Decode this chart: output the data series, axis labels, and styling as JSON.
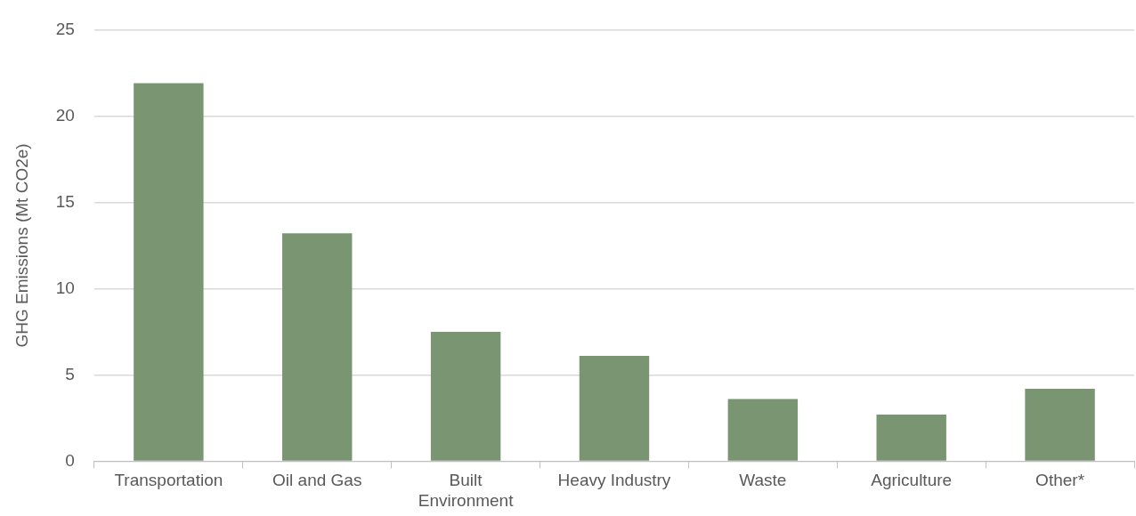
{
  "chart_data": {
    "type": "bar",
    "ylabel": "GHG Emissions (Mt CO2e)",
    "categories": [
      "Transportation",
      "Oil and Gas",
      "Built Environment",
      "Heavy Industry",
      "Waste",
      "Agriculture",
      "Other*"
    ],
    "values": [
      21.9,
      13.2,
      7.5,
      6.1,
      3.6,
      2.7,
      4.2
    ],
    "color": "#7a9571",
    "ylim": [
      0,
      25
    ],
    "yticks": [
      0,
      5,
      10,
      15,
      20,
      25
    ],
    "grid": "y",
    "legend": false
  }
}
